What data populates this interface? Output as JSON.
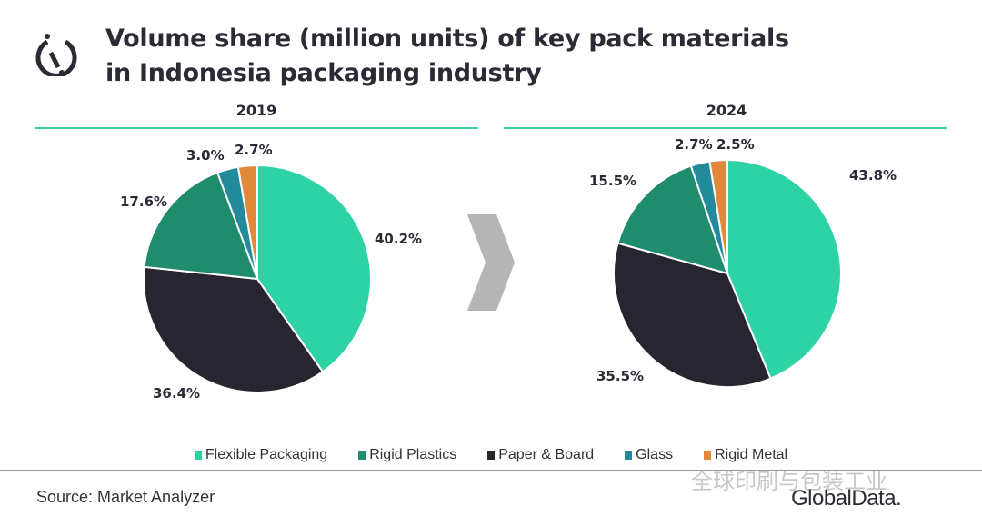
{
  "title_line1": "Volume share (million units) of key pack materials",
  "title_line2": "in Indonesia packaging industry",
  "source": "Source: Market Analyzer",
  "brand": "GlobalData.",
  "watermark": "全球印刷与包装工业",
  "chart_data": {
    "type": "pie",
    "categories": [
      "Flexible Packaging",
      "Rigid Plastics",
      "Paper & Board",
      "Glass",
      "Rigid Metal"
    ],
    "colors": [
      "#2ed3a5",
      "#1f8c6e",
      "#27252f",
      "#228a9b",
      "#e0893a"
    ],
    "legend_position": "bottom",
    "charts": [
      {
        "title": "2019",
        "values": [
          40.2,
          36.4,
          17.6,
          3.0,
          2.7
        ],
        "value_order": [
          "Flexible Packaging",
          "Paper & Board",
          "Rigid Plastics",
          "Glass",
          "Rigid Metal"
        ],
        "labels": [
          "40.2%",
          "36.4%",
          "17.6%",
          "3.0%",
          "2.7%"
        ]
      },
      {
        "title": "2024",
        "values": [
          43.8,
          35.5,
          15.5,
          2.7,
          2.5
        ],
        "value_order": [
          "Flexible Packaging",
          "Paper & Board",
          "Rigid Plastics",
          "Glass",
          "Rigid Metal"
        ],
        "labels": [
          "43.8%",
          "35.5%",
          "15.5%",
          "2.7%",
          "2.5%"
        ]
      }
    ]
  }
}
